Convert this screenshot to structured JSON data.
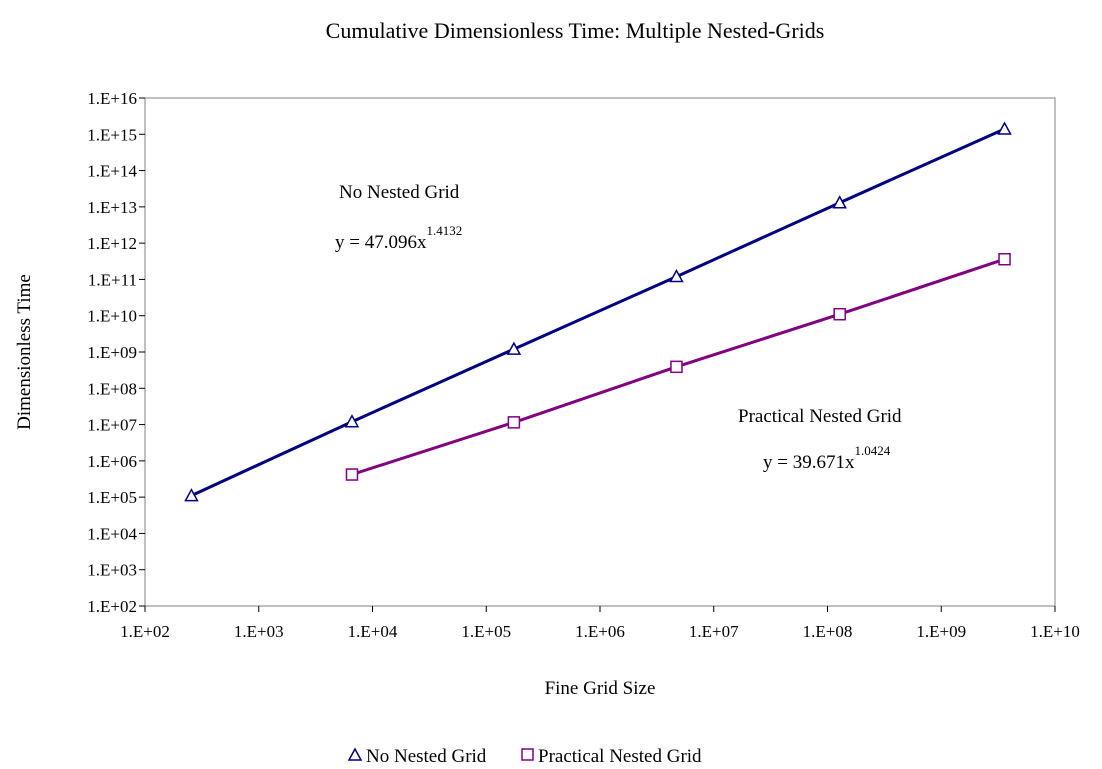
{
  "chart_data": {
    "type": "scatter",
    "title": "Cumulative Dimensionless Time: Multiple Nested-Grids",
    "xlabel": "Fine Grid Size",
    "ylabel": "Dimensionless Time",
    "xscale": "log",
    "yscale": "log",
    "xlim": [
      100,
      10000000000
    ],
    "ylim": [
      100,
      10000000000000000
    ],
    "xticks": [
      "1.E+02",
      "1.E+03",
      "1.E+04",
      "1.E+05",
      "1.E+06",
      "1.E+07",
      "1.E+08",
      "1.E+09",
      "1.E+10"
    ],
    "yticks": [
      "1.E+02",
      "1.E+03",
      "1.E+04",
      "1.E+05",
      "1.E+06",
      "1.E+07",
      "1.E+08",
      "1.E+09",
      "1.E+10",
      "1.E+11",
      "1.E+12",
      "1.E+13",
      "1.E+14",
      "1.E+15",
      "1.E+16"
    ],
    "grid": false,
    "legend_position": "bottom",
    "series": [
      {
        "name": "No Nested Grid",
        "marker": "triangle",
        "color": "#000080",
        "x": [
          256,
          6600,
          175000,
          4700000,
          128000000,
          3600000000
        ],
        "y": [
          110000,
          12000000,
          1200000000,
          120000000000,
          13000000000000,
          1400000000000000
        ]
      },
      {
        "name": "Practical Nested Grid",
        "marker": "square",
        "color": "#800080",
        "x": [
          6600,
          175000,
          4700000,
          128000000,
          3600000000
        ],
        "y": [
          420000,
          11500000,
          390000000,
          11000000000,
          360000000000
        ]
      }
    ],
    "annotations": [
      {
        "label": "No Nested Grid",
        "equation": "y = 47.096x",
        "exponent": "1.4132",
        "color": "#000080"
      },
      {
        "label": "Practical Nested Grid",
        "equation": "y = 39.671x",
        "exponent": "1.0424",
        "color": "#993366"
      }
    ]
  }
}
